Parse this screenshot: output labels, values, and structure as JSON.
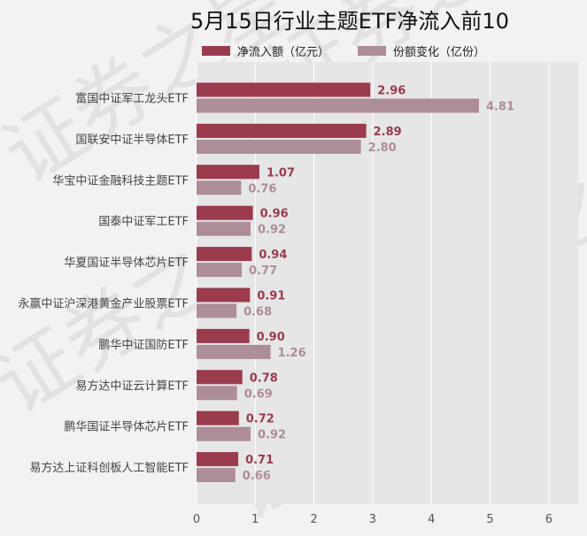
{
  "chart_data": {
    "type": "bar",
    "orientation": "horizontal",
    "title": "5月15日行业主题ETF净流入前10",
    "xlabel": "",
    "ylabel": "",
    "xlim": [
      0,
      6.5
    ],
    "xticks": [
      "0",
      "1",
      "2",
      "3",
      "4",
      "5",
      "6"
    ],
    "grid": true,
    "legend_position": "top",
    "categories": [
      "富国中证军工龙头ETF",
      "国联安中证半导体ETF",
      "华宝中证金融科技主题ETF",
      "国泰中证军工ETF",
      "华夏国证半导体芯片ETF",
      "永赢中证沪深港黄金产业股票ETF",
      "鹏华中证国防ETF",
      "易方达中证云计算ETF",
      "鹏华国证半导体芯片ETF",
      "易方达上证科创板人工智能ETF"
    ],
    "series": [
      {
        "name": "净流入额（亿元）",
        "color": "#9a3b4e",
        "values": [
          2.96,
          2.89,
          1.07,
          0.96,
          0.94,
          0.91,
          0.9,
          0.78,
          0.72,
          0.71
        ],
        "labels": [
          "2.96",
          "2.89",
          "1.07",
          "0.96",
          "0.94",
          "0.91",
          "0.90",
          "0.78",
          "0.72",
          "0.71"
        ]
      },
      {
        "name": "份额变化（亿份）",
        "color": "#ad8d97",
        "values": [
          4.81,
          2.8,
          0.76,
          0.92,
          0.77,
          0.68,
          1.26,
          0.69,
          0.92,
          0.66
        ],
        "labels": [
          "4.81",
          "2.80",
          "0.76",
          "0.92",
          "0.77",
          "0.68",
          "1.26",
          "0.69",
          "0.92",
          "0.66"
        ]
      }
    ]
  },
  "watermark": {
    "text": "证券之星"
  },
  "colors": {
    "plot_bg": "#e6e6e6",
    "grid": "#ffffff",
    "series1": "#9a3b4e",
    "series2": "#ad8d97"
  }
}
